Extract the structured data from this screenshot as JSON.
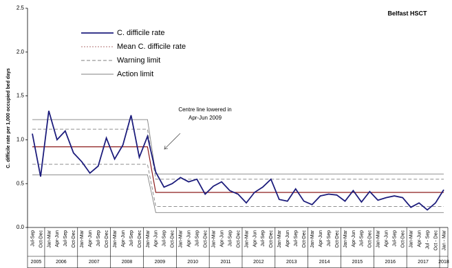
{
  "chart_data": {
    "type": "line",
    "title": "Belfast HSCT",
    "y_label": "C. difficile rate per 1,000 occupied bed days",
    "annotation": [
      "Centre line lowered in",
      "Apr-Jun 2009"
    ],
    "categories": [
      "Jul-Sep",
      "Oct-Dec",
      "Jan-Mar",
      "Apr-Jun",
      "Jul-Sep",
      "Oct-Dec",
      "Jan-Mar",
      "Apr-Jun",
      "Jul-Sep",
      "Oct-Dec",
      "Jan-Mar",
      "Apr-Jun",
      "Jul-Sep",
      "Oct-Dec",
      "Jan-Mar",
      "Apr-Jun",
      "Jul-Sep",
      "Oct-Dec",
      "Jan-Mar",
      "Apr-Jun",
      "Jul-Sep",
      "Oct-Dec",
      "Jan-Mar",
      "Apr-Jun",
      "Jul-Sep",
      "Oct-Dec",
      "Jan-Mar",
      "Apr-Jun",
      "Jul-Sep",
      "Oct-Dec",
      "Jan-Mar",
      "Apr-Jun",
      "Jul-Sep",
      "Oct-Dec",
      "Jan-Mar",
      "Apr-Jun",
      "Jul-Sep",
      "Oct-Dec",
      "Jan-Mar",
      "Apr-Jun",
      "Jul-Sep",
      "Oct-Dec",
      "Jan-Mar",
      "Apr-Jun",
      "Jul-Sep",
      "Oct-Dec",
      "Jan-Mar",
      "Apr-Jun",
      "Jul - Sep",
      "Oct - Dec",
      "Jan - Mar"
    ],
    "years": [
      "2005",
      "2006",
      "2007",
      "2008",
      "2009",
      "2010",
      "2011",
      "2012",
      "2013",
      "2014",
      "2015",
      "2016",
      "2017",
      "2018"
    ],
    "series": [
      {
        "name": "C. difficile rate",
        "color": "#1c1c7c",
        "values": [
          1.07,
          0.58,
          1.33,
          1.0,
          1.1,
          0.85,
          0.75,
          0.62,
          0.7,
          1.02,
          0.78,
          0.94,
          1.28,
          0.8,
          1.04,
          0.63,
          0.46,
          0.5,
          0.57,
          0.52,
          0.55,
          0.38,
          0.47,
          0.52,
          0.42,
          0.38,
          0.28,
          0.4,
          0.46,
          0.55,
          0.32,
          0.3,
          0.44,
          0.3,
          0.26,
          0.36,
          0.38,
          0.37,
          0.3,
          0.42,
          0.29,
          0.41,
          0.31,
          0.34,
          0.36,
          0.34,
          0.23,
          0.28,
          0.2,
          0.28,
          0.43
        ]
      },
      {
        "name": "Mean C. difficile rate",
        "color": "#8b1a1a",
        "values": [
          0.92,
          0.92,
          0.92,
          0.92,
          0.92,
          0.92,
          0.92,
          0.92,
          0.92,
          0.92,
          0.92,
          0.92,
          0.92,
          0.92,
          0.92,
          0.4,
          0.4,
          0.4,
          0.4,
          0.4,
          0.4,
          0.4,
          0.4,
          0.4,
          0.4,
          0.4,
          0.4,
          0.4,
          0.4,
          0.4,
          0.4,
          0.4,
          0.4,
          0.4,
          0.4,
          0.4,
          0.4,
          0.4,
          0.4,
          0.4,
          0.4,
          0.4,
          0.4,
          0.4,
          0.4,
          0.4,
          0.4,
          0.4,
          0.4,
          0.4,
          0.4
        ]
      },
      {
        "name": "Warning limit",
        "color": "#7f7f7f",
        "values": [
          1.12,
          1.12,
          1.12,
          1.12,
          1.12,
          1.12,
          1.12,
          1.12,
          1.12,
          1.12,
          1.12,
          1.12,
          1.12,
          1.12,
          1.12,
          0.55,
          0.55,
          0.55,
          0.55,
          0.55,
          0.55,
          0.55,
          0.55,
          0.55,
          0.55,
          0.55,
          0.55,
          0.55,
          0.55,
          0.55,
          0.55,
          0.55,
          0.55,
          0.55,
          0.55,
          0.55,
          0.55,
          0.55,
          0.55,
          0.55,
          0.55,
          0.55,
          0.55,
          0.55,
          0.55,
          0.55,
          0.55,
          0.55,
          0.55,
          0.55,
          0.55
        ],
        "lower": [
          0.72,
          0.72,
          0.72,
          0.72,
          0.72,
          0.72,
          0.72,
          0.72,
          0.72,
          0.72,
          0.72,
          0.72,
          0.72,
          0.72,
          0.72,
          0.24,
          0.24,
          0.24,
          0.24,
          0.24,
          0.24,
          0.24,
          0.24,
          0.24,
          0.24,
          0.24,
          0.24,
          0.24,
          0.24,
          0.24,
          0.24,
          0.24,
          0.24,
          0.24,
          0.24,
          0.24,
          0.24,
          0.24,
          0.24,
          0.24,
          0.24,
          0.24,
          0.24,
          0.24,
          0.24,
          0.24,
          0.24,
          0.24,
          0.24,
          0.24,
          0.24
        ]
      },
      {
        "name": "Action limit",
        "color": "#7f7f7f",
        "values": [
          1.23,
          1.23,
          1.23,
          1.23,
          1.23,
          1.23,
          1.23,
          1.23,
          1.23,
          1.23,
          1.23,
          1.23,
          1.23,
          1.23,
          1.23,
          0.61,
          0.61,
          0.61,
          0.61,
          0.61,
          0.61,
          0.61,
          0.61,
          0.61,
          0.61,
          0.61,
          0.61,
          0.61,
          0.61,
          0.61,
          0.61,
          0.61,
          0.61,
          0.61,
          0.61,
          0.61,
          0.61,
          0.61,
          0.61,
          0.61,
          0.61,
          0.61,
          0.61,
          0.61,
          0.61,
          0.61,
          0.61,
          0.61,
          0.61,
          0.61,
          0.61
        ],
        "lower": [
          0.6,
          0.6,
          0.6,
          0.6,
          0.6,
          0.6,
          0.6,
          0.6,
          0.6,
          0.6,
          0.6,
          0.6,
          0.6,
          0.6,
          0.6,
          0.17,
          0.17,
          0.17,
          0.17,
          0.17,
          0.17,
          0.17,
          0.17,
          0.17,
          0.17,
          0.17,
          0.17,
          0.17,
          0.17,
          0.17,
          0.17,
          0.17,
          0.17,
          0.17,
          0.17,
          0.17,
          0.17,
          0.17,
          0.17,
          0.17,
          0.17,
          0.17,
          0.17,
          0.17,
          0.17,
          0.17,
          0.17,
          0.17,
          0.17,
          0.17,
          0.17
        ]
      }
    ],
    "ylim": [
      0,
      2.5
    ],
    "yticks": [
      {
        "value": 0,
        "label": "0.0"
      },
      0.5,
      {
        "value": 1,
        "label": "1.0"
      },
      1.5,
      {
        "value": 2,
        "label": "2.0"
      },
      2.5
    ]
  }
}
